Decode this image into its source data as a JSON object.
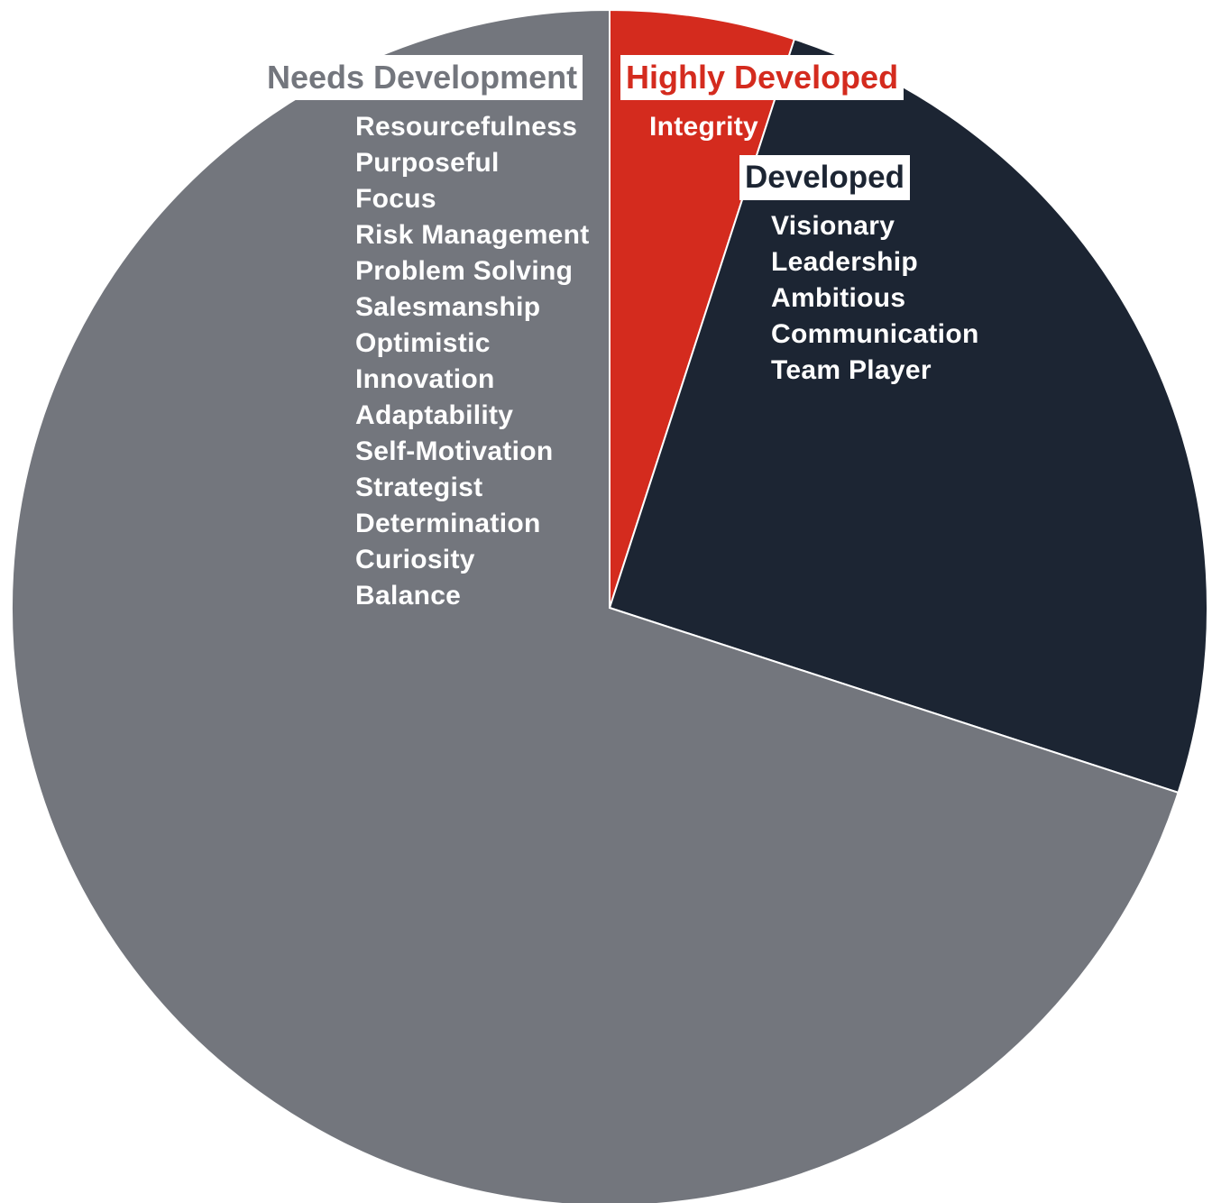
{
  "chart_data": {
    "type": "pie",
    "title": "",
    "start_direction": "top",
    "clockwise": true,
    "slices": [
      {
        "label": "Highly Developed",
        "value": 1,
        "color": "#d42b1e",
        "items": [
          "Integrity"
        ]
      },
      {
        "label": "Developed",
        "value": 5,
        "color": "#1c2533",
        "items": [
          "Visionary",
          "Leadership",
          "Ambitious",
          "Communication",
          "Team Player"
        ]
      },
      {
        "label": "Needs Development",
        "value": 14,
        "color": "#73767d",
        "items": [
          "Resourcefulness",
          "Purposeful",
          "Focus",
          "Risk Management",
          "Problem Solving",
          "Salesmanship",
          "Optimistic",
          "Innovation",
          "Adaptability",
          "Self-Motivation",
          "Strategist",
          "Determination",
          "Curiosity",
          "Balance"
        ]
      }
    ]
  }
}
